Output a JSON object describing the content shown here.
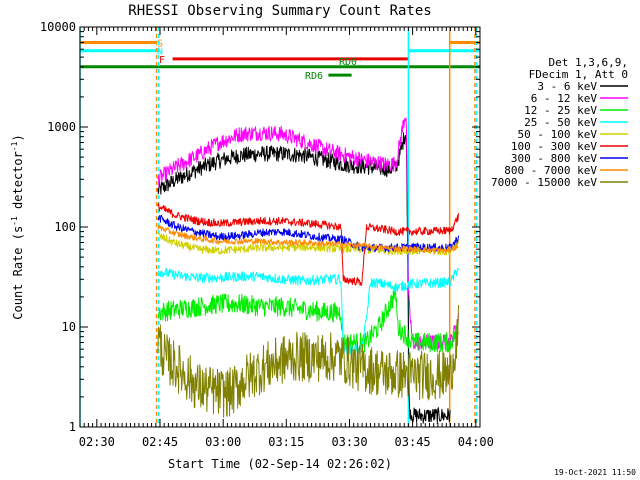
{
  "chart_data": {
    "type": "line",
    "title": "RHESSI Observing Summary Count Rates",
    "xlabel": "Start Time (02-Sep-14 02:26:02)",
    "ylabel": "Count Rate (s",
    "ylabel_sup": "-1",
    "ylabel_tail": " detector",
    "ylabel_tail_sup": "-1",
    "ylabel_close": ")",
    "yscale": "log",
    "ylim": [
      1,
      10000
    ],
    "xlim_minutes": [
      0,
      95
    ],
    "x_ticks": [
      {
        "minute": 4,
        "label": "02:30"
      },
      {
        "minute": 19,
        "label": "02:45"
      },
      {
        "minute": 34,
        "label": "03:00"
      },
      {
        "minute": 49,
        "label": "03:15"
      },
      {
        "minute": 64,
        "label": "03:30"
      },
      {
        "minute": 79,
        "label": "03:45"
      },
      {
        "minute": 94,
        "label": "04:00"
      }
    ],
    "y_ticks": [
      {
        "value": 1,
        "label": "1"
      },
      {
        "value": 10,
        "label": "10"
      },
      {
        "value": 100,
        "label": "100"
      },
      {
        "value": 1000,
        "label": "1000"
      },
      {
        "value": 10000,
        "label": "10000"
      }
    ],
    "legend": {
      "position": "right",
      "header": [
        "Det 1,3,6,9,",
        "FDecim 1, Att 0"
      ],
      "entries": [
        {
          "label": "3 - 6 keV",
          "color": "#000000"
        },
        {
          "label": "6 - 12 keV",
          "color": "#ff00ff"
        },
        {
          "label": "12 - 25 keV",
          "color": "#00ee00"
        },
        {
          "label": "25 - 50 keV",
          "color": "#00ffff"
        },
        {
          "label": "50 - 100 keV",
          "color": "#d0d000"
        },
        {
          "label": "100 - 300 keV",
          "color": "#ee0000"
        },
        {
          "label": "300 - 800 keV",
          "color": "#0000ee"
        },
        {
          "label": "800 - 7000 keV",
          "color": "#ff8c00"
        },
        {
          "label": "7000 - 15000 keV",
          "color": "#808000"
        }
      ]
    },
    "series": [
      {
        "name": "3 - 6 keV",
        "color": "#000000",
        "noise": 0.08,
        "points": [
          [
            18.5,
            230
          ],
          [
            23,
            300
          ],
          [
            28,
            380
          ],
          [
            33,
            460
          ],
          [
            38,
            520
          ],
          [
            43,
            540
          ],
          [
            48,
            540
          ],
          [
            53,
            520
          ],
          [
            58,
            470
          ],
          [
            63,
            420
          ],
          [
            68,
            400
          ],
          [
            73,
            380
          ],
          [
            75,
            390
          ],
          [
            76,
            530
          ],
          [
            77,
            800
          ],
          [
            77.5,
            900
          ],
          [
            78,
            10
          ],
          [
            78.2,
            1.5
          ],
          [
            79,
            1.3
          ],
          [
            88,
            1.3
          ]
        ]
      },
      {
        "name": "6 - 12 keV",
        "color": "#ff00ff",
        "noise": 0.08,
        "points": [
          [
            18.5,
            300
          ],
          [
            23,
            400
          ],
          [
            28,
            520
          ],
          [
            33,
            700
          ],
          [
            38,
            850
          ],
          [
            43,
            880
          ],
          [
            48,
            850
          ],
          [
            53,
            720
          ],
          [
            58,
            600
          ],
          [
            63,
            520
          ],
          [
            68,
            460
          ],
          [
            73,
            420
          ],
          [
            75,
            430
          ],
          [
            76,
            700
          ],
          [
            77,
            1200
          ],
          [
            77.5,
            1400
          ],
          [
            78,
            20
          ],
          [
            79,
            7
          ],
          [
            88,
            7
          ],
          [
            90,
            12
          ]
        ]
      },
      {
        "name": "12 - 25 keV",
        "color": "#00ee00",
        "noise": 0.1,
        "points": [
          [
            18.5,
            14
          ],
          [
            23,
            15
          ],
          [
            28,
            16
          ],
          [
            33,
            17
          ],
          [
            38,
            17
          ],
          [
            43,
            16
          ],
          [
            48,
            16
          ],
          [
            53,
            15
          ],
          [
            58,
            14
          ],
          [
            62,
            14
          ],
          [
            62.5,
            7
          ],
          [
            66,
            7
          ],
          [
            68,
            7
          ],
          [
            69,
            8
          ],
          [
            70,
            9
          ],
          [
            71,
            10
          ],
          [
            73,
            15
          ],
          [
            75,
            22
          ],
          [
            75.5,
            10
          ],
          [
            79,
            7
          ],
          [
            88,
            7
          ],
          [
            90,
            10
          ]
        ]
      },
      {
        "name": "25 - 50 keV",
        "color": "#00ffff",
        "noise": 0.05,
        "points": [
          [
            18.5,
            36
          ],
          [
            23,
            33
          ],
          [
            28,
            31
          ],
          [
            33,
            31
          ],
          [
            38,
            32
          ],
          [
            43,
            32
          ],
          [
            48,
            30
          ],
          [
            53,
            29
          ],
          [
            58,
            30
          ],
          [
            62,
            30
          ],
          [
            62.5,
            6
          ],
          [
            67,
            6
          ],
          [
            68,
            12
          ],
          [
            69,
            28
          ],
          [
            72,
            27
          ],
          [
            75,
            25
          ],
          [
            75.5,
            25
          ],
          [
            79,
            27
          ],
          [
            88,
            28
          ],
          [
            90,
            40
          ]
        ]
      },
      {
        "name": "50 - 100 keV",
        "color": "#d0d000",
        "noise": 0.04,
        "points": [
          [
            18.5,
            82
          ],
          [
            23,
            68
          ],
          [
            28,
            60
          ],
          [
            33,
            58
          ],
          [
            38,
            60
          ],
          [
            43,
            62
          ],
          [
            48,
            62
          ],
          [
            53,
            63
          ],
          [
            58,
            62
          ],
          [
            62,
            60
          ],
          [
            67,
            60
          ],
          [
            72,
            58
          ],
          [
            79,
            58
          ],
          [
            88,
            57
          ],
          [
            90,
            70
          ]
        ]
      },
      {
        "name": "100 - 300 keV",
        "color": "#ee0000",
        "noise": 0.04,
        "points": [
          [
            18.5,
            160
          ],
          [
            23,
            130
          ],
          [
            28,
            115
          ],
          [
            33,
            108
          ],
          [
            38,
            112
          ],
          [
            43,
            115
          ],
          [
            48,
            114
          ],
          [
            53,
            110
          ],
          [
            58,
            105
          ],
          [
            62,
            100
          ],
          [
            62.5,
            30
          ],
          [
            67,
            28
          ],
          [
            68,
            100
          ],
          [
            72,
            95
          ],
          [
            75,
            90
          ],
          [
            75.5,
            90
          ],
          [
            79,
            90
          ],
          [
            88,
            92
          ],
          [
            90,
            130
          ]
        ]
      },
      {
        "name": "300 - 800 keV",
        "color": "#0000ee",
        "noise": 0.04,
        "points": [
          [
            18.5,
            125
          ],
          [
            23,
            100
          ],
          [
            28,
            88
          ],
          [
            33,
            80
          ],
          [
            38,
            82
          ],
          [
            43,
            88
          ],
          [
            48,
            90
          ],
          [
            53,
            84
          ],
          [
            58,
            78
          ],
          [
            62,
            75
          ],
          [
            62.5,
            75
          ],
          [
            67,
            62
          ],
          [
            72,
            62
          ],
          [
            79,
            63
          ],
          [
            88,
            62
          ],
          [
            90,
            80
          ]
        ]
      },
      {
        "name": "800 - 7000 keV",
        "color": "#ff8c00",
        "noise": 0.03,
        "points": [
          [
            18.5,
            100
          ],
          [
            23,
            85
          ],
          [
            28,
            77
          ],
          [
            33,
            72
          ],
          [
            38,
            72
          ],
          [
            43,
            72
          ],
          [
            48,
            70
          ],
          [
            53,
            70
          ],
          [
            58,
            68
          ],
          [
            62,
            67
          ],
          [
            67,
            65
          ],
          [
            72,
            62
          ],
          [
            79,
            60
          ],
          [
            87,
            58
          ],
          [
            90,
            65
          ]
        ]
      },
      {
        "name": "7000 - 15000 keV",
        "color": "#808000",
        "noise": 0.25,
        "points": [
          [
            18.5,
            8
          ],
          [
            20,
            5
          ],
          [
            23,
            4
          ],
          [
            28,
            2.5
          ],
          [
            33,
            2.2
          ],
          [
            36,
            2.2
          ],
          [
            39,
            3
          ],
          [
            44,
            4
          ],
          [
            50,
            5
          ],
          [
            56,
            5
          ],
          [
            62,
            5
          ],
          [
            66,
            4
          ],
          [
            72,
            3.5
          ],
          [
            79,
            3.3
          ],
          [
            88,
            3.3
          ],
          [
            89,
            6
          ],
          [
            90,
            10
          ]
        ]
      }
    ],
    "vertical_lines": [
      {
        "minute": 0,
        "color": "#00ffff"
      },
      {
        "minute": 18.2,
        "color": "#ff8c00",
        "dash": true
      },
      {
        "minute": 18.7,
        "color": "#00ffff",
        "dash": true
      },
      {
        "minute": 78,
        "color": "#00ffff"
      },
      {
        "minute": 87.8,
        "color": "#ff8c00"
      },
      {
        "minute": 93.8,
        "color": "#ff8c00",
        "dash": true
      },
      {
        "minute": 94.2,
        "color": "#00ffff",
        "dash": true
      }
    ],
    "flag_bars": [
      {
        "label": "S",
        "color": "#ff8c00",
        "value": 7000,
        "segments": [
          [
            0,
            18.2
          ],
          [
            87.8,
            95
          ]
        ]
      },
      {
        "label": "N",
        "color": "#00ffff",
        "value": 5800,
        "segments": [
          [
            0,
            18.7
          ],
          [
            78,
            95
          ]
        ]
      },
      {
        "label": "F",
        "color": "#ee0000",
        "value": 4800,
        "segments": [
          [
            22,
            78
          ]
        ]
      },
      {
        "label": "RD0",
        "color": "#008800",
        "value": 4000,
        "segments": [
          [
            0,
            95
          ]
        ]
      },
      {
        "label": "RD6",
        "color": "#008800",
        "value": 3300,
        "segments": [
          [
            59,
            64.5
          ]
        ]
      }
    ],
    "footer_date": "19-Oct-2021 11:50"
  }
}
